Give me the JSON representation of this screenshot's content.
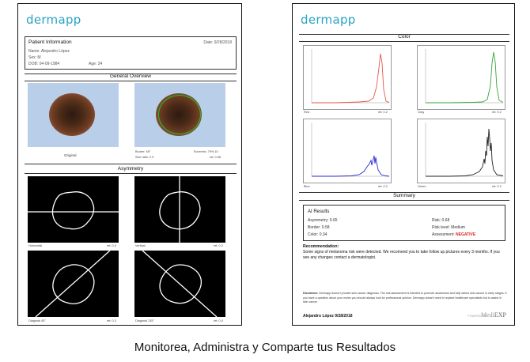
{
  "brand": "dermapp",
  "left_report": {
    "patient_info": {
      "title": "Patient Information",
      "date": "Date: 9/28/2018",
      "name": "Name: Alejandro López",
      "sex": "Sex: M",
      "dob": "DOB: 04-09-1984",
      "age": "Age: 34"
    },
    "general_overview": {
      "title": "General Overview",
      "original_label": "Original",
      "border_label": "Border: 48°",
      "eccentricity": "Eccentric. 79% 10",
      "size_ratio": "Size ratio: 2.9",
      "ret": "ret: 0.58"
    },
    "asymmetry": {
      "title": "Asymmetry",
      "panels": [
        {
          "label": "Horizontal",
          "ret": "ret: 0.4"
        },
        {
          "label": "Vertical",
          "ret": "ret: 0.2"
        },
        {
          "label": "Diagonal 45°",
          "ret": "ret: 0.3"
        },
        {
          "label": "Diagonal 135°",
          "ret": "ret: 0.4"
        }
      ]
    }
  },
  "right_report": {
    "color_title": "Color",
    "histograms": [
      {
        "label": "Red",
        "ret": "ret: 0.2",
        "color": "#e05a4a"
      },
      {
        "label": "Gray",
        "ret": "ret: 0.2",
        "color": "#39a33c"
      },
      {
        "label": "Blue",
        "ret": "ret: 0.2",
        "color": "#2a2ad0"
      },
      {
        "label": "Green",
        "ret": "ret: 0.2",
        "color": "#222222"
      }
    ],
    "summary_title": "Summary",
    "ai_results": {
      "title": "AI Results",
      "asymmetry": "Asymmetry: 0.65",
      "border": "Border: 0.58",
      "color": "Color: 0.34",
      "risk": "Risk: 0.68",
      "risk_level": "Risk level: Medium",
      "assessment_label": "Assessment:",
      "assessment_value": "NEGATIVE"
    },
    "recommendation_title": "Recommendation:",
    "recommendation_text": "Some signs of melanoma risk were detected. We recomend you to take follow up pictures every 3 months. If you see any changes contact a dermatologist.",
    "disclaimer_label": "Disclaimer:",
    "disclaimer_text": "Dermapp doesn't provide skin cancer diagnosis. The risk assessment is intented to promote awareness and help detect skin cancer in early stages. If you have a question about your moles you should always look for professional opinion. Dermapp doesn't seek to replace healthcare specialists but to assist in skin cancer",
    "signature": "Alejandro López 9/28/2018",
    "powered_by": "POWERED BY",
    "powered_logo_a": "Medi",
    "powered_logo_b": "EXP"
  },
  "caption": "Monitorea, Administra y Comparte tus Resultados"
}
